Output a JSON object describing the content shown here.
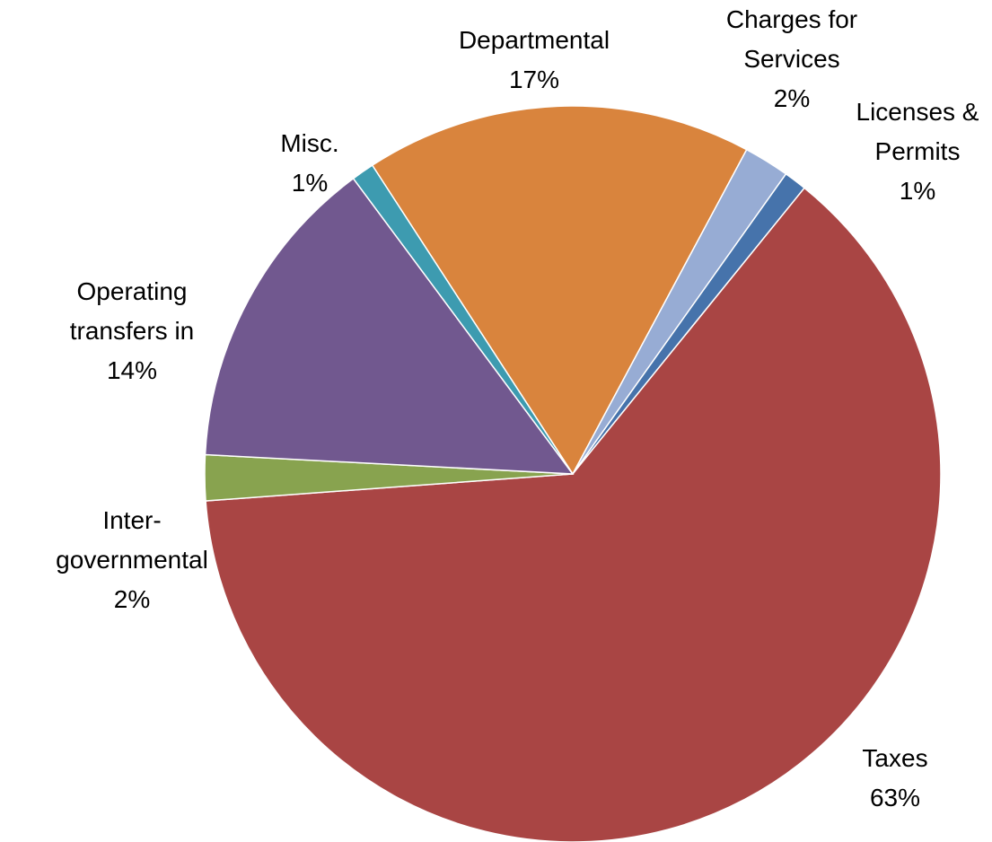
{
  "chart_data": {
    "type": "pie",
    "categories": [
      "Departmental",
      "Charges for Services",
      "Licenses & Permits",
      "Taxes",
      "Inter-governmental",
      "Operating transfers in",
      "Misc."
    ],
    "values": [
      17,
      2,
      1,
      63,
      2,
      14,
      1
    ],
    "value_labels": [
      "17%",
      "2%",
      "1%",
      "63%",
      "2%",
      "14%",
      "1%"
    ],
    "colors": [
      "#d9843d",
      "#97acd4",
      "#4673ab",
      "#a94544",
      "#88a34f",
      "#71588f",
      "#3d9bb0"
    ]
  }
}
